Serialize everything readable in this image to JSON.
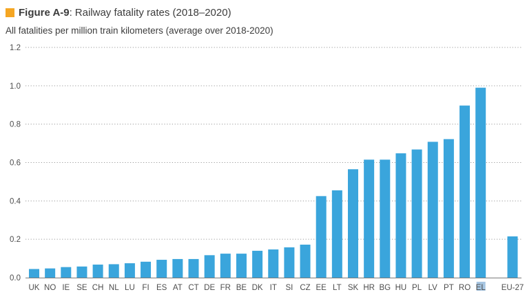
{
  "figure": {
    "label": "Figure A-9",
    "separator": ":",
    "title": "Railway fatality rates (2018–2020)",
    "subtitle": "All fatalities per million train kilometers (average over 2018-2020)",
    "marker_color": "#f5a623"
  },
  "colors": {
    "bar": "#3aa5dc",
    "highlight_label_bg": "#a7c6e2",
    "grid": "#9a9a9a",
    "axis": "#7a7a7a",
    "text": "#4d4d4d"
  },
  "chart_data": {
    "type": "bar",
    "title": "Railway fatality rates (2018–2020)",
    "ylabel": "All fatalities per million train kilometers (average over 2018-2020)",
    "xlabel": "",
    "ylim": [
      0,
      1.2
    ],
    "yticks": [
      0.0,
      0.2,
      0.4,
      0.6,
      0.8,
      1.0,
      1.2
    ],
    "ytick_labels": [
      "0.0",
      "0.2",
      "0.4",
      "0.6",
      "0.8",
      "1.0",
      "1.2"
    ],
    "grid": "horizontal dotted",
    "categories": [
      "UK",
      "NO",
      "IE",
      "SE",
      "CH",
      "NL",
      "LU",
      "FI",
      "ES",
      "AT",
      "CT",
      "DE",
      "FR",
      "BE",
      "DK",
      "IT",
      "SI",
      "CZ",
      "EE",
      "LT",
      "SK",
      "HR",
      "BG",
      "HU",
      "PL",
      "LV",
      "PT",
      "RO",
      "EL",
      "",
      "EU-27"
    ],
    "values": [
      0.045,
      0.048,
      0.055,
      0.058,
      0.068,
      0.07,
      0.075,
      0.083,
      0.093,
      0.097,
      0.097,
      0.117,
      0.125,
      0.125,
      0.14,
      0.147,
      0.158,
      0.172,
      0.425,
      0.455,
      0.565,
      0.615,
      0.615,
      0.648,
      0.668,
      0.708,
      0.722,
      0.897,
      0.99,
      null,
      0.215
    ],
    "highlighted_category": "EL"
  }
}
